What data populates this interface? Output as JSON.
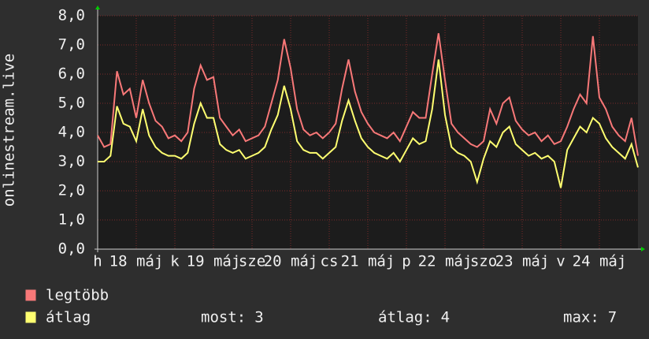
{
  "chart_data": {
    "type": "line",
    "y_label": "onlinestream.live",
    "x": [
      0,
      2,
      4,
      6,
      8,
      10,
      12,
      14,
      16,
      18,
      20,
      22,
      24,
      26,
      28,
      30,
      32,
      34,
      36,
      38,
      40,
      42,
      44,
      46,
      48,
      50,
      52,
      54,
      56,
      58,
      60,
      62,
      64,
      66,
      68,
      70,
      72,
      74,
      76,
      78,
      80,
      82,
      84,
      86,
      88,
      90,
      92,
      94,
      96,
      98,
      100,
      102,
      104,
      106,
      108,
      110,
      112,
      114,
      116,
      118,
      120,
      122,
      124,
      126,
      128,
      130,
      132,
      134,
      136,
      138,
      140,
      142,
      144,
      146,
      148,
      150,
      152,
      154,
      156,
      158,
      160,
      162,
      164,
      166,
      168
    ],
    "xlim": [
      0,
      168
    ],
    "xticks": [
      {
        "value": 0,
        "label": "h"
      },
      {
        "value": 12,
        "label": "18 máj"
      },
      {
        "value": 24,
        "label": "k"
      },
      {
        "value": 36,
        "label": "19 máj"
      },
      {
        "value": 48,
        "label": "sze"
      },
      {
        "value": 60,
        "label": "20 máj"
      },
      {
        "value": 72,
        "label": "cs"
      },
      {
        "value": 84,
        "label": "21 máj"
      },
      {
        "value": 96,
        "label": "p"
      },
      {
        "value": 108,
        "label": "22 máj"
      },
      {
        "value": 120,
        "label": "szo"
      },
      {
        "value": 132,
        "label": "23 máj"
      },
      {
        "value": 144,
        "label": "v"
      },
      {
        "value": 156,
        "label": "24 máj"
      }
    ],
    "ylim": [
      0,
      8
    ],
    "yticks": [
      {
        "value": 0,
        "label": "0,0"
      },
      {
        "value": 1,
        "label": "1,0"
      },
      {
        "value": 2,
        "label": "2,0"
      },
      {
        "value": 3,
        "label": "3,0"
      },
      {
        "value": 4,
        "label": "4,0"
      },
      {
        "value": 5,
        "label": "5,0"
      },
      {
        "value": 6,
        "label": "6,0"
      },
      {
        "value": 7,
        "label": "7,0"
      },
      {
        "value": 8,
        "label": "8,0"
      }
    ],
    "grid": true,
    "series": [
      {
        "name": "legtöbb",
        "color": "#f87878",
        "values": [
          3.9,
          3.5,
          3.6,
          6.1,
          5.3,
          5.5,
          4.5,
          5.8,
          5.0,
          4.4,
          4.2,
          3.8,
          3.9,
          3.7,
          4.0,
          5.5,
          6.3,
          5.8,
          5.9,
          4.5,
          4.2,
          3.9,
          4.1,
          3.7,
          3.8,
          3.9,
          4.2,
          5.0,
          5.8,
          7.2,
          6.2,
          4.8,
          4.1,
          3.9,
          4.0,
          3.8,
          4.0,
          4.3,
          5.5,
          6.5,
          5.4,
          4.7,
          4.3,
          4.0,
          3.9,
          3.8,
          4.0,
          3.7,
          4.2,
          4.7,
          4.5,
          4.5,
          6.0,
          7.4,
          5.8,
          4.3,
          4.0,
          3.8,
          3.6,
          3.5,
          3.7,
          4.8,
          4.3,
          5.0,
          5.2,
          4.4,
          4.1,
          3.9,
          4.0,
          3.7,
          3.9,
          3.6,
          3.7,
          4.2,
          4.8,
          5.3,
          5.0,
          7.3,
          5.2,
          4.8,
          4.2,
          3.9,
          3.7,
          4.5,
          3.2
        ]
      },
      {
        "name": "átlag",
        "color": "#ffff70",
        "values": [
          3.0,
          3.0,
          3.2,
          4.9,
          4.3,
          4.2,
          3.7,
          4.8,
          3.9,
          3.5,
          3.3,
          3.2,
          3.2,
          3.1,
          3.3,
          4.3,
          5.0,
          4.5,
          4.5,
          3.6,
          3.4,
          3.3,
          3.4,
          3.1,
          3.2,
          3.3,
          3.5,
          4.1,
          4.6,
          5.6,
          4.8,
          3.7,
          3.4,
          3.3,
          3.3,
          3.1,
          3.3,
          3.5,
          4.4,
          5.1,
          4.4,
          3.8,
          3.5,
          3.3,
          3.2,
          3.1,
          3.3,
          3.0,
          3.4,
          3.8,
          3.6,
          3.7,
          4.8,
          6.5,
          4.6,
          3.5,
          3.3,
          3.2,
          3.0,
          2.3,
          3.1,
          3.7,
          3.5,
          4.0,
          4.2,
          3.6,
          3.4,
          3.2,
          3.3,
          3.1,
          3.2,
          3.0,
          2.1,
          3.4,
          3.8,
          4.2,
          4.0,
          4.5,
          4.3,
          3.8,
          3.5,
          3.3,
          3.1,
          3.6,
          2.8
        ]
      }
    ],
    "stats": [
      {
        "label": "most:",
        "value": 3
      },
      {
        "label": "átlag:",
        "value": 4
      },
      {
        "label": "max:",
        "value": 7
      }
    ]
  }
}
